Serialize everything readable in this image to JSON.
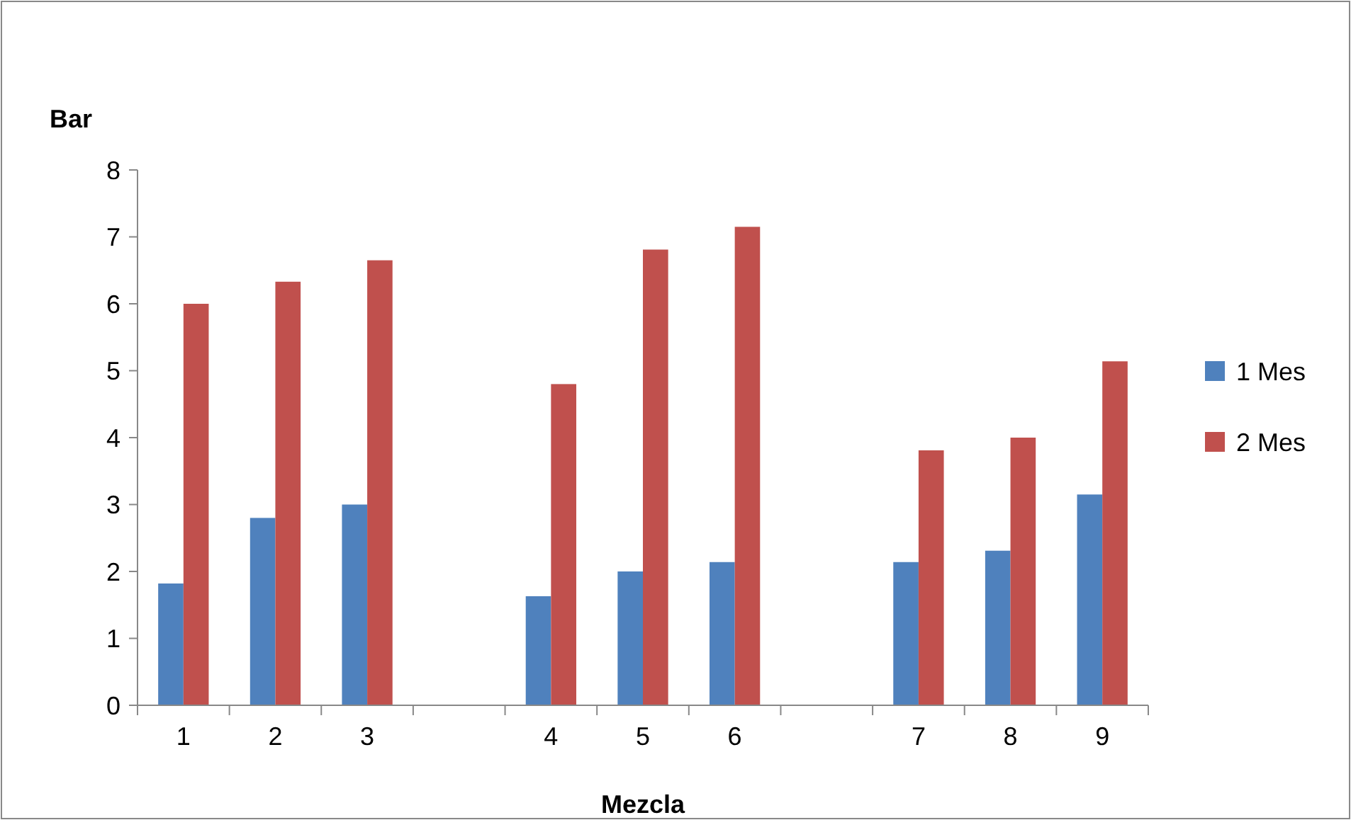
{
  "chart_data": {
    "type": "bar",
    "ylabel": "Bar",
    "xlabel": "Mezcla",
    "categories": [
      "1",
      "2",
      "3",
      null,
      "4",
      "5",
      "6",
      null,
      "7",
      "8",
      "9"
    ],
    "series": [
      {
        "name": "1 Mes",
        "color": "#4f81bd",
        "values": [
          1.82,
          2.8,
          3.0,
          null,
          1.63,
          2.0,
          2.14,
          null,
          2.14,
          2.31,
          3.15
        ]
      },
      {
        "name": "2 Mes",
        "color": "#c0504d",
        "values": [
          6.0,
          6.33,
          6.65,
          null,
          4.8,
          6.81,
          7.15,
          null,
          3.81,
          4.0,
          5.14
        ]
      }
    ],
    "ylim": [
      0,
      8
    ],
    "yticks": [
      0,
      1,
      2,
      3,
      4,
      5,
      6,
      7,
      8
    ],
    "grid": false,
    "legend": "right"
  }
}
